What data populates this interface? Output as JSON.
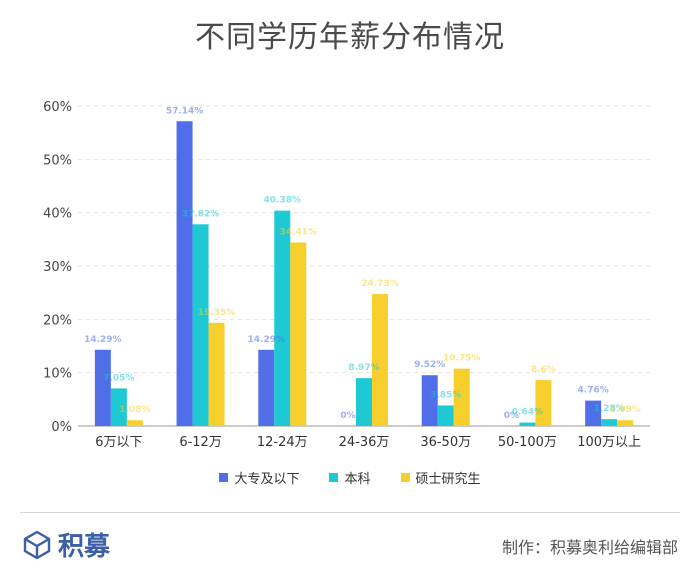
{
  "header": {
    "title": "不同学历年薪分布情况"
  },
  "footer": {
    "logo_text": "积募",
    "credit": "制作：积募奥利给编辑部"
  },
  "colors": {
    "series": [
      "#4f6ee8",
      "#1ec9d4",
      "#f6cf2c"
    ]
  },
  "chart_data": {
    "type": "bar",
    "title": "不同学历年薪分布情况",
    "categories": [
      "6万以下",
      "6-12万",
      "12-24万",
      "24-36万",
      "36-50万",
      "50-100万",
      "100万以上"
    ],
    "series": [
      {
        "name": "大专及以下",
        "values": [
          14.29,
          57.14,
          14.29,
          0,
          9.52,
          0,
          4.76
        ],
        "labels": [
          "14.29%",
          "57.14%",
          "14.29%",
          "0%",
          "9.52%",
          "0%",
          "4.76%"
        ]
      },
      {
        "name": "本科",
        "values": [
          7.05,
          37.82,
          40.38,
          8.97,
          3.85,
          0.64,
          1.28
        ],
        "labels": [
          "7.05%",
          "37.82%",
          "40.38%",
          "8.97%",
          "3.85%",
          "0.64%",
          "1.28%"
        ]
      },
      {
        "name": "硕士研究生",
        "values": [
          1.08,
          19.35,
          34.41,
          24.73,
          10.75,
          8.6,
          1.08
        ],
        "labels": [
          "1.08%",
          "19.35%",
          "34.41%",
          "24.73%",
          "10.75%",
          "8.6%",
          "1.08%"
        ]
      }
    ],
    "ylim": [
      0,
      60
    ],
    "yticks": [
      "0%",
      "10%",
      "20%",
      "30%",
      "40%",
      "50%",
      "60%"
    ],
    "grid": true,
    "legend": "bottom"
  }
}
